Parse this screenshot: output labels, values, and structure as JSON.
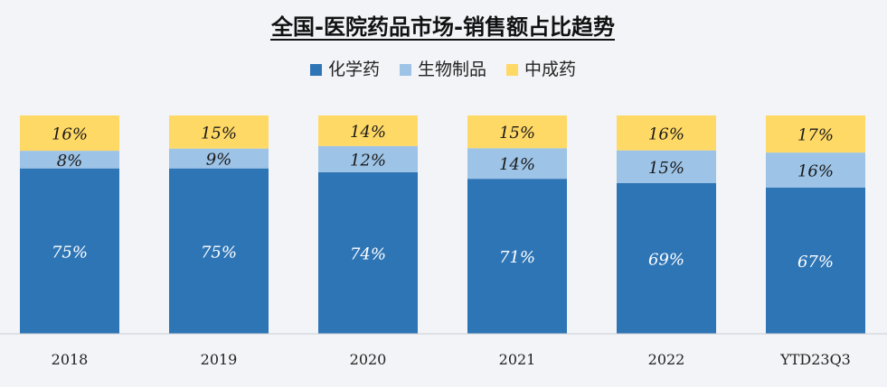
{
  "chart_data": {
    "type": "bar",
    "stacked": true,
    "normalized_percent": true,
    "title": "全国-医院药品市场-销售额占比趋势",
    "categories": [
      "2018",
      "2019",
      "2020",
      "2021",
      "2022",
      "YTD23Q3"
    ],
    "series": [
      {
        "name": "化学药",
        "color": "#2e75b6",
        "values": [
          75,
          75,
          74,
          71,
          69,
          67
        ],
        "labels": [
          "75%",
          "75%",
          "74%",
          "71%",
          "69%",
          "67%"
        ]
      },
      {
        "name": "生物制品",
        "color": "#9dc3e6",
        "values": [
          8,
          9,
          12,
          14,
          15,
          16
        ],
        "labels": [
          "8%",
          "9%",
          "12%",
          "14%",
          "15%",
          "16%"
        ]
      },
      {
        "name": "中成药",
        "color": "#ffd966",
        "values": [
          16,
          15,
          14,
          15,
          16,
          17
        ],
        "labels": [
          "16%",
          "15%",
          "14%",
          "15%",
          "16%",
          "17%"
        ]
      }
    ],
    "ylim": [
      0,
      100
    ],
    "legend_position": "top-center",
    "grid": false
  }
}
